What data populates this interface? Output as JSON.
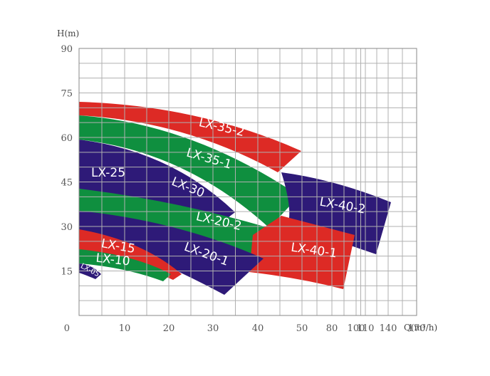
{
  "chart_data": {
    "type": "area",
    "title": "",
    "xlabel": "Q(m³/h)",
    "ylabel": "H(m)",
    "x_ticks": [
      "0",
      "10",
      "20",
      "30",
      "40",
      "50",
      "80",
      "100",
      "110",
      "140",
      "170"
    ],
    "y_ticks": [
      "15",
      "30",
      "45",
      "60",
      "75",
      "90"
    ],
    "ylim": [
      0,
      90
    ],
    "grid": true,
    "series": [
      {
        "name": "LX-35-2",
        "color": "#dd2a25",
        "flow_range": [
          0,
          50
        ],
        "head_range": [
          55,
          72
        ]
      },
      {
        "name": "LX-35-1",
        "color": "#0f8f3f",
        "flow_range": [
          0,
          50
        ],
        "head_range": [
          37,
          67
        ]
      },
      {
        "name": "LX-25",
        "color": "#dd2a25",
        "flow_range": [
          0,
          18
        ],
        "head_range": [
          40,
          56
        ]
      },
      {
        "name": "LX-30",
        "color": "#2e1a78",
        "flow_range": [
          0,
          38
        ],
        "head_range": [
          30,
          60
        ]
      },
      {
        "name": "LX-40-2",
        "color": "#2e1a78",
        "flow_range": [
          40,
          140
        ],
        "head_range": [
          21,
          48
        ]
      },
      {
        "name": "LX-20-2",
        "color": "#0f8f3f",
        "flow_range": [
          0,
          45
        ],
        "head_range": [
          20,
          43
        ]
      },
      {
        "name": "LX-40-1",
        "color": "#dd2a25",
        "flow_range": [
          35,
          90
        ],
        "head_range": [
          8,
          34
        ]
      },
      {
        "name": "LX-20-1",
        "color": "#2e1a78",
        "flow_range": [
          0,
          38
        ],
        "head_range": [
          7,
          36
        ]
      },
      {
        "name": "LX-15",
        "color": "#dd2a25",
        "flow_range": [
          0,
          22
        ],
        "head_range": [
          13,
          29
        ]
      },
      {
        "name": "LX-10",
        "color": "#0f8f3f",
        "flow_range": [
          0,
          19
        ],
        "head_range": [
          11,
          22
        ]
      },
      {
        "name": "LX-05",
        "color": "#2e1a78",
        "flow_range": [
          0,
          5
        ],
        "head_range": [
          12,
          18
        ]
      }
    ]
  }
}
